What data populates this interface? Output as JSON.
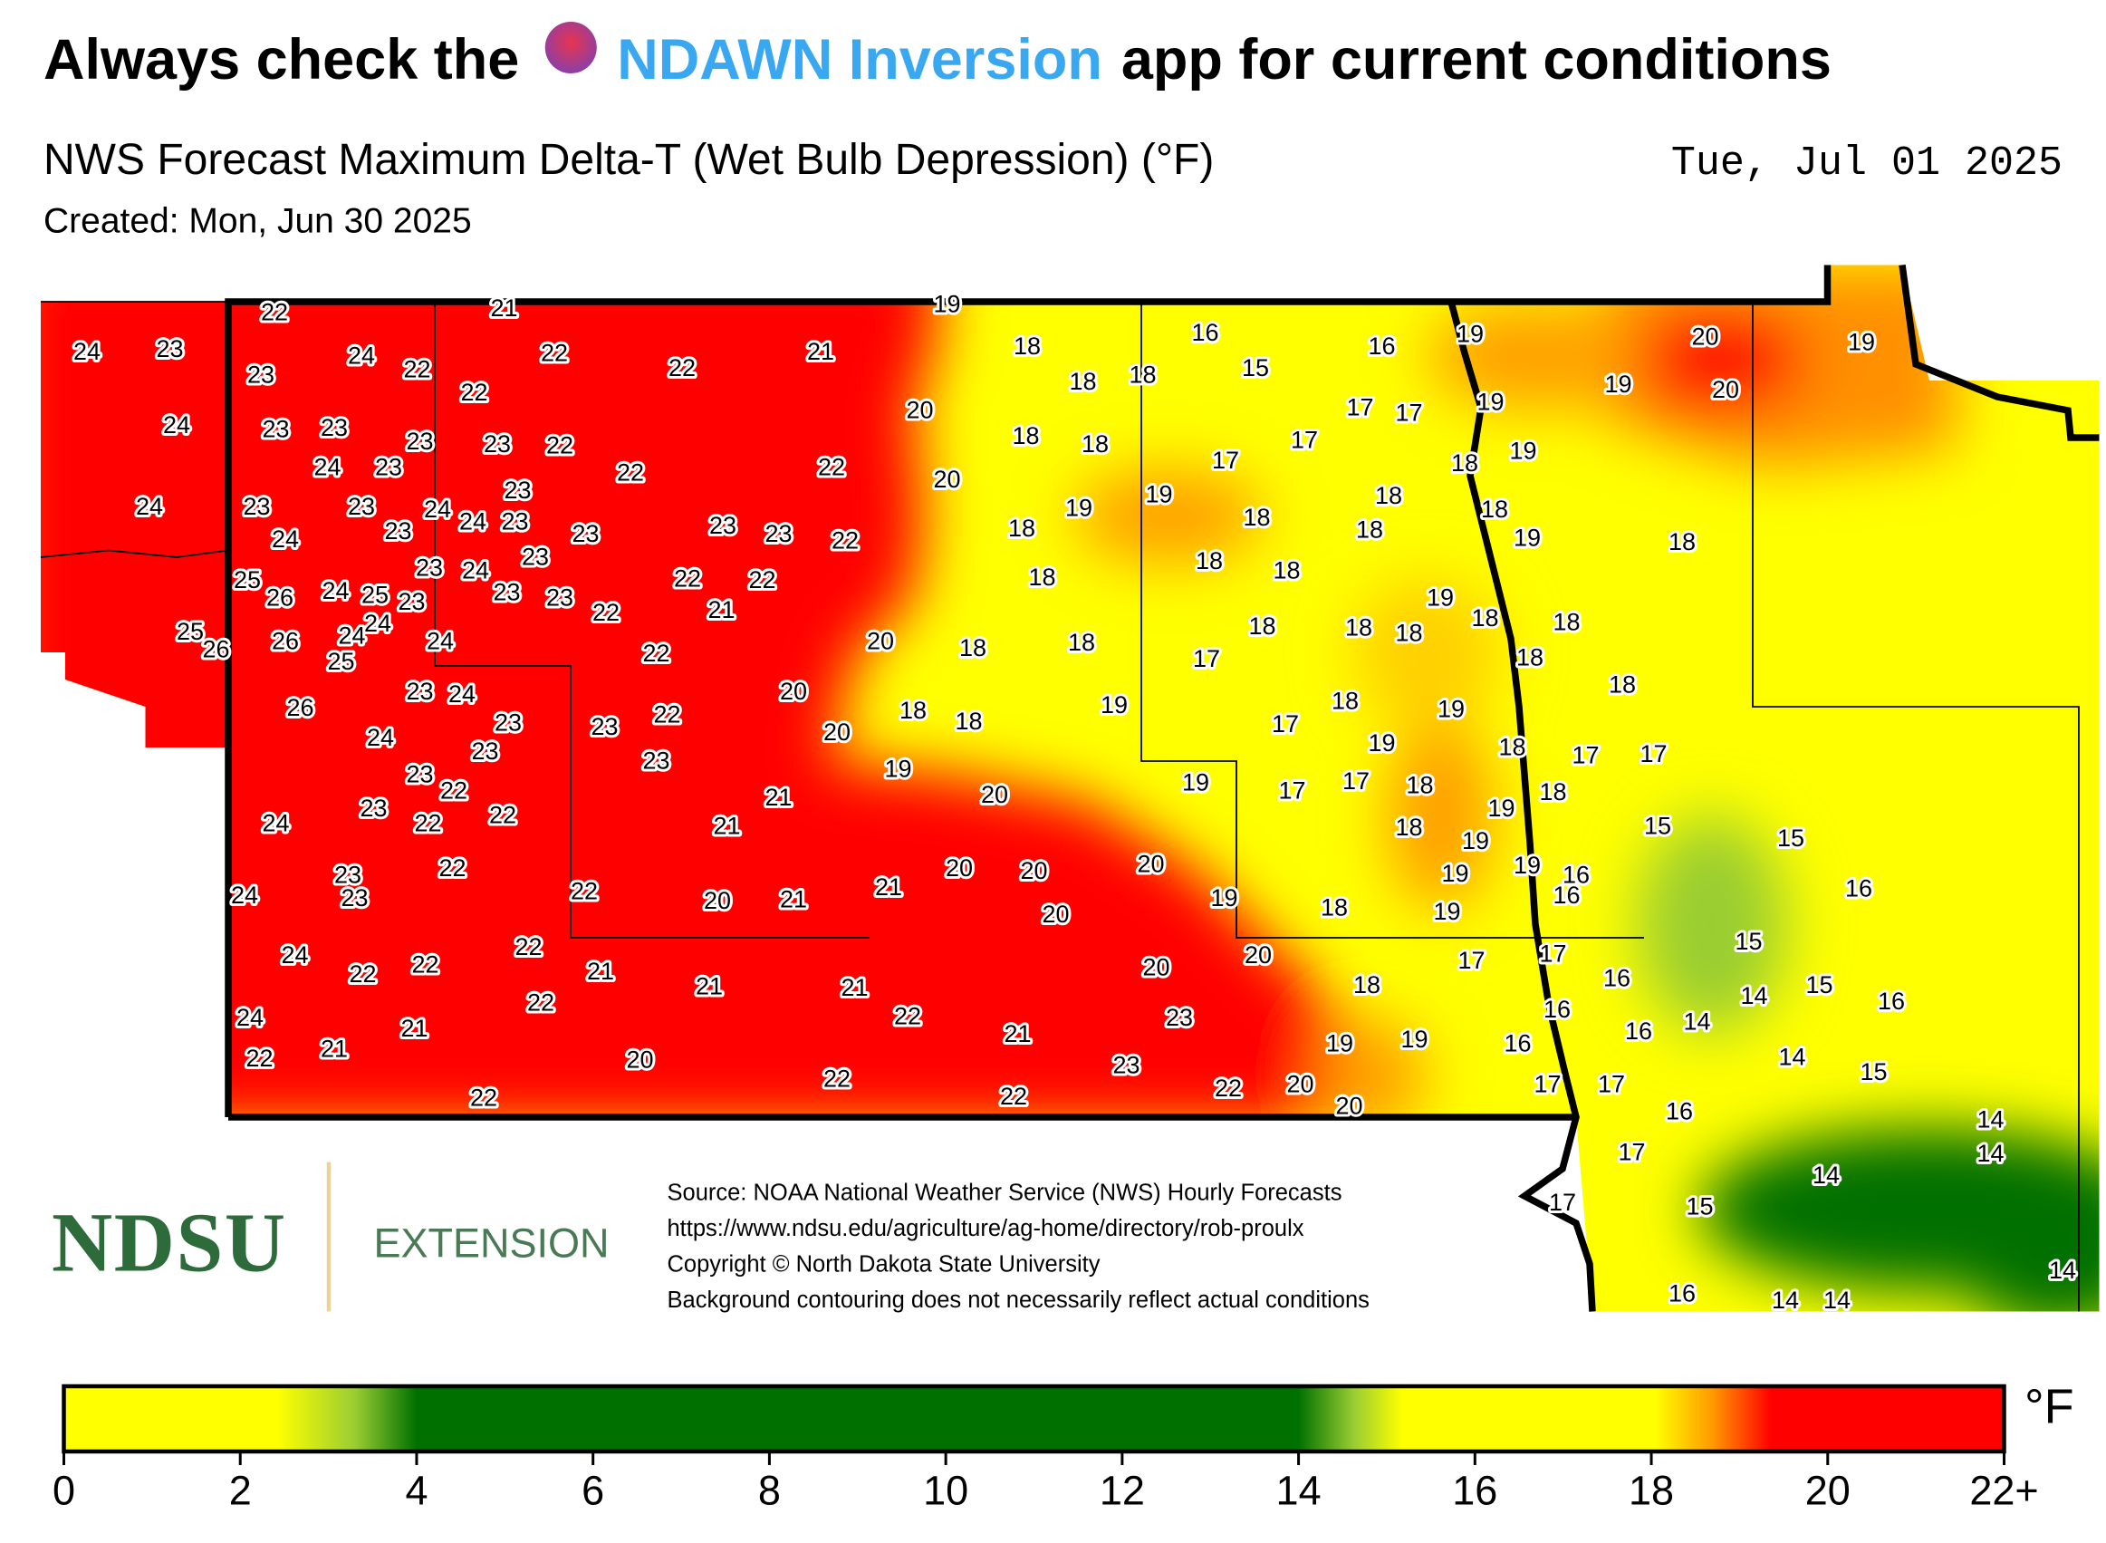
{
  "header": {
    "title_start": "Always check the",
    "app_name": "NDAWN Inversion",
    "title_end": "app for current conditions",
    "subtitle": "NWS Forecast Maximum Delta-T (Wet Bulb Depression) (°F)",
    "date": "Tue, Jul 01 2025",
    "created": "Created: Mon, Jun 30 2025"
  },
  "map": {
    "station_values": [
      22,
      21,
      19,
      24,
      23,
      24,
      23,
      22,
      22,
      22,
      21,
      18,
      16,
      16,
      19,
      20,
      19,
      22,
      18,
      18,
      15,
      19,
      20,
      24,
      23,
      23,
      20,
      17,
      17,
      19,
      23,
      23,
      22,
      18,
      18,
      17,
      19,
      24,
      23,
      22,
      22,
      20,
      17,
      18,
      23,
      18,
      19,
      24,
      23,
      23,
      24,
      24,
      23,
      19,
      18,
      18,
      24,
      23,
      23,
      23,
      23,
      22,
      18,
      18,
      19,
      18,
      23,
      23,
      24,
      18,
      18,
      25,
      26,
      24,
      25,
      23,
      23,
      23,
      22,
      22,
      18,
      19,
      22,
      21,
      18,
      18,
      25,
      26,
      26,
      24,
      24,
      24,
      20,
      18,
      18,
      18,
      18,
      18,
      25,
      22,
      17,
      18,
      23,
      24,
      20,
      18,
      26,
      22,
      18,
      18,
      19,
      18,
      19,
      23,
      23,
      20,
      17,
      24,
      23,
      23,
      19,
      18,
      17,
      17,
      23,
      22,
      19,
      19,
      17,
      18,
      17,
      21,
      20,
      18,
      23,
      22,
      22,
      24,
      21,
      19,
      15,
      15,
      18,
      19,
      22,
      23,
      20,
      20,
      20,
      19,
      16,
      19,
      24,
      23,
      22,
      20,
      21,
      21,
      16,
      16,
      20,
      19,
      18,
      19,
      24,
      22,
      15,
      20,
      17,
      22,
      22,
      21,
      21,
      21,
      20,
      17,
      18,
      16,
      15,
      14,
      24,
      22,
      22,
      23,
      16,
      16,
      14,
      21,
      21,
      21,
      19,
      19,
      16,
      16,
      14,
      15,
      22,
      20,
      23,
      22,
      20,
      22,
      17,
      17,
      22,
      22,
      20,
      16,
      14,
      17,
      14,
      14,
      17,
      15,
      14,
      16,
      14,
      14
    ]
  },
  "legend": {
    "unit": "°F",
    "ticks": [
      0,
      2,
      4,
      6,
      8,
      10,
      12,
      14,
      16,
      18,
      20,
      {
        "value": 22,
        "label": "22+"
      }
    ]
  },
  "footer": {
    "logo": "NDSU",
    "logo_sub": "EXTENSION",
    "source_lines": [
      "Source: NOAA National Weather Service (NWS) Hourly Forecasts",
      "https://www.ndsu.edu/agriculture/ag-home/directory/rob-proulx",
      "Copyright © North Dakota State University",
      "Background contouring does not necessarily reflect actual conditions"
    ]
  }
}
